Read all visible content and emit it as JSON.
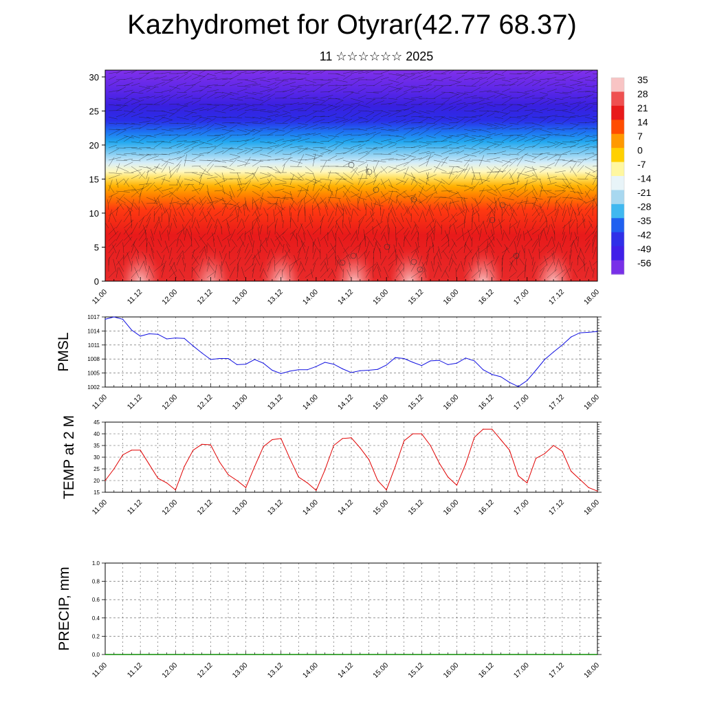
{
  "title": "Kazhydromet for Otyrar(42.77 68.37)",
  "subtitle": "11 ☆☆☆☆☆☆ 2025",
  "time_labels": [
    "11.00",
    "11.12",
    "12.00",
    "12.12",
    "13.00",
    "13.12",
    "14.00",
    "14.12",
    "15.00",
    "15.12",
    "16.00",
    "16.12",
    "17.00",
    "17.12",
    "18.00"
  ],
  "chart_data": [
    {
      "type": "heatmap",
      "name": "vertical-cross-section",
      "x": [
        "11.00",
        "11.12",
        "12.00",
        "12.12",
        "13.00",
        "13.12",
        "14.00",
        "14.12",
        "15.00",
        "15.12",
        "16.00",
        "16.12",
        "17.00",
        "17.12",
        "18.00"
      ],
      "ylim": [
        0,
        31
      ],
      "yticks": [
        0,
        5,
        10,
        15,
        20,
        25,
        30
      ],
      "colorbar": {
        "labels": [
          "35",
          "28",
          "21",
          "14",
          "7",
          "0",
          "-7",
          "-14",
          "-21",
          "-28",
          "-35",
          "-42",
          "-49",
          "-56"
        ],
        "colors": [
          "#f8c4c4",
          "#ef5050",
          "#e81a1a",
          "#ff4d00",
          "#ff9900",
          "#ffd000",
          "#fff7a0",
          "#e8f4f8",
          "#a8d8f0",
          "#40b8f0",
          "#2060f0",
          "#3030e8",
          "#4020e8",
          "#7830e8"
        ]
      }
    },
    {
      "type": "line",
      "ylabel": "PMSL",
      "ylim": [
        1002,
        1017
      ],
      "yticks": [
        1002,
        1005,
        1008,
        1011,
        1014,
        1017
      ],
      "color": "#1010e0",
      "x": [
        "11.00",
        "11.03",
        "11.06",
        "11.09",
        "11.12",
        "11.15",
        "11.18",
        "11.21",
        "12.00",
        "12.03",
        "12.06",
        "12.09",
        "12.12",
        "12.15",
        "12.18",
        "12.21",
        "13.00",
        "13.03",
        "13.06",
        "13.09",
        "13.12",
        "13.15",
        "13.18",
        "13.21",
        "14.00",
        "14.03",
        "14.06",
        "14.09",
        "14.12",
        "14.15",
        "14.18",
        "14.21",
        "15.00",
        "15.03",
        "15.06",
        "15.09",
        "15.12",
        "15.15",
        "15.18",
        "15.21",
        "16.00",
        "16.03",
        "16.06",
        "16.09",
        "16.12",
        "16.15",
        "16.18",
        "16.21",
        "17.00",
        "17.03",
        "17.06",
        "17.09",
        "17.12",
        "17.15",
        "17.18",
        "17.21",
        "18.00"
      ],
      "values": [
        1016.5,
        1017.0,
        1016.5,
        1014.2,
        1012.9,
        1013.4,
        1013.3,
        1012.3,
        1012.5,
        1012.4,
        1010.8,
        1009.3,
        1007.9,
        1008.1,
        1008.1,
        1006.8,
        1006.9,
        1007.9,
        1007.1,
        1005.6,
        1004.9,
        1005.4,
        1005.7,
        1005.7,
        1006.4,
        1007.3,
        1006.9,
        1005.9,
        1005.1,
        1005.5,
        1005.6,
        1005.8,
        1006.7,
        1008.3,
        1008.1,
        1007.3,
        1006.6,
        1007.6,
        1007.7,
        1006.8,
        1007.1,
        1008.2,
        1007.6,
        1005.7,
        1004.7,
        1004.2,
        1003.0,
        1002.1,
        1003.4,
        1005.6,
        1007.9,
        1009.5,
        1011.0,
        1012.7,
        1013.6,
        1013.7,
        1013.9
      ]
    },
    {
      "type": "line",
      "ylabel": "TEMP at 2 M",
      "ylim": [
        15,
        45
      ],
      "yticks": [
        15,
        20,
        25,
        30,
        35,
        40,
        45
      ],
      "color": "#e00000",
      "x": [
        "11.00",
        "11.03",
        "11.06",
        "11.09",
        "11.12",
        "11.15",
        "11.18",
        "11.21",
        "12.00",
        "12.03",
        "12.06",
        "12.09",
        "12.12",
        "12.15",
        "12.18",
        "12.21",
        "13.00",
        "13.03",
        "13.06",
        "13.09",
        "13.12",
        "13.15",
        "13.18",
        "13.21",
        "14.00",
        "14.03",
        "14.06",
        "14.09",
        "14.12",
        "14.15",
        "14.18",
        "14.21",
        "15.00",
        "15.03",
        "15.06",
        "15.09",
        "15.12",
        "15.15",
        "15.18",
        "15.21",
        "16.00",
        "16.03",
        "16.06",
        "16.09",
        "16.12",
        "16.15",
        "16.18",
        "16.21",
        "17.00",
        "17.03",
        "17.06",
        "17.09",
        "17.12",
        "17.15",
        "17.18",
        "17.21",
        "18.00"
      ],
      "values": [
        20,
        25,
        31,
        33,
        33,
        27,
        21,
        19,
        16,
        26,
        33,
        35.5,
        35.3,
        28,
        22.5,
        20,
        17,
        26,
        34.5,
        37.5,
        38,
        29.5,
        21.5,
        19,
        15.8,
        24.5,
        35,
        38,
        38.3,
        34,
        29,
        20,
        16,
        26,
        37,
        40,
        40,
        35,
        27.5,
        21.5,
        18,
        27,
        38.5,
        42,
        42,
        37.5,
        33,
        22,
        19,
        29.5,
        31.5,
        35,
        32.5,
        24,
        20.5,
        17,
        15.5
      ]
    },
    {
      "type": "bar",
      "ylabel": "PRECIP, mm",
      "ylim": [
        0,
        1.0
      ],
      "yticks": [
        "0.0",
        "0.2",
        "0.4",
        "0.6",
        "0.8",
        "1.0"
      ],
      "color": "#0a8a00",
      "x": [
        "11.00",
        "11.12",
        "12.00",
        "12.12",
        "13.00",
        "13.12",
        "14.00",
        "14.12",
        "15.00",
        "15.12",
        "16.00",
        "16.12",
        "17.00",
        "17.12",
        "18.00"
      ],
      "values": [
        0,
        0,
        0,
        0,
        0,
        0,
        0,
        0,
        0,
        0,
        0,
        0,
        0,
        0,
        0
      ]
    }
  ]
}
